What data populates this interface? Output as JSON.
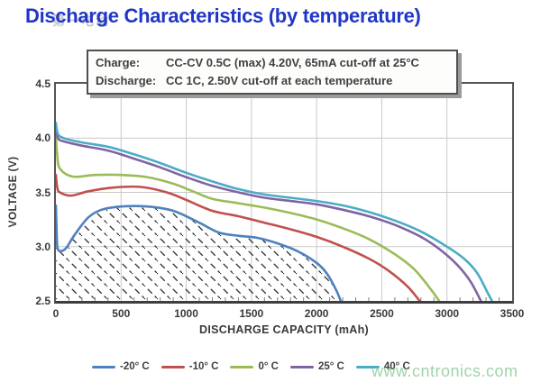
{
  "title": "Discharge Characteristics (by temperature)",
  "watermark_top": "第一电动",
  "watermark_bottom": "www.cntronics.com",
  "info_box": {
    "rows": [
      {
        "label": "Charge:",
        "text": "CC-CV 0.5C (max) 4.20V, 65mA cut-off at 25°C"
      },
      {
        "label": "Discharge:",
        "text": "CC 1C, 2.50V cut-off at each temperature"
      }
    ]
  },
  "colors": {
    "title": "#2036c8",
    "grid": "#c9c9c9",
    "axis_frame": "#555555",
    "minor_tick": "#7d7d7d",
    "hatch": "#2e2e2e",
    "watermark_green": "#8fcc9b"
  },
  "chart_data": {
    "type": "line",
    "xlabel": "DISCHARGE CAPACITY (mAh)",
    "ylabel": "VOLTAGE (V)",
    "xlim": [
      0,
      3500
    ],
    "ylim": [
      2.5,
      4.5
    ],
    "xticks": [
      0,
      500,
      1000,
      1500,
      2000,
      2500,
      3000,
      3500
    ],
    "yticks": [
      "4.5",
      "4.0",
      "3.5",
      "3.0",
      "2.5"
    ],
    "grid": true,
    "legend_position": "bottom",
    "series": [
      {
        "name": "-20° C",
        "color": "#4F81BD",
        "hatched_area": true,
        "points": [
          [
            0,
            3.38
          ],
          [
            5,
            3.18
          ],
          [
            12,
            2.99
          ],
          [
            40,
            2.96
          ],
          [
            80,
            2.99
          ],
          [
            150,
            3.12
          ],
          [
            250,
            3.27
          ],
          [
            350,
            3.34
          ],
          [
            500,
            3.37
          ],
          [
            700,
            3.37
          ],
          [
            900,
            3.33
          ],
          [
            1100,
            3.22
          ],
          [
            1250,
            3.13
          ],
          [
            1400,
            3.1
          ],
          [
            1550,
            3.08
          ],
          [
            1700,
            3.03
          ],
          [
            1850,
            2.96
          ],
          [
            2000,
            2.85
          ],
          [
            2080,
            2.75
          ],
          [
            2150,
            2.6
          ],
          [
            2185,
            2.5
          ]
        ]
      },
      {
        "name": "-10° C",
        "color": "#C0504D",
        "hatched_area": false,
        "points": [
          [
            0,
            3.66
          ],
          [
            10,
            3.55
          ],
          [
            30,
            3.5
          ],
          [
            120,
            3.47
          ],
          [
            250,
            3.51
          ],
          [
            450,
            3.545
          ],
          [
            650,
            3.55
          ],
          [
            850,
            3.5
          ],
          [
            1000,
            3.43
          ],
          [
            1200,
            3.33
          ],
          [
            1400,
            3.28
          ],
          [
            1600,
            3.22
          ],
          [
            1800,
            3.16
          ],
          [
            2000,
            3.09
          ],
          [
            2200,
            3.0
          ],
          [
            2400,
            2.89
          ],
          [
            2550,
            2.78
          ],
          [
            2700,
            2.63
          ],
          [
            2790,
            2.5
          ]
        ]
      },
      {
        "name": "0° C",
        "color": "#9BBB59",
        "hatched_area": false,
        "points": [
          [
            0,
            4.02
          ],
          [
            10,
            3.85
          ],
          [
            30,
            3.72
          ],
          [
            130,
            3.645
          ],
          [
            300,
            3.66
          ],
          [
            500,
            3.66
          ],
          [
            700,
            3.64
          ],
          [
            900,
            3.58
          ],
          [
            1050,
            3.51
          ],
          [
            1200,
            3.44
          ],
          [
            1400,
            3.4
          ],
          [
            1600,
            3.36
          ],
          [
            1800,
            3.31
          ],
          [
            2000,
            3.25
          ],
          [
            2200,
            3.17
          ],
          [
            2400,
            3.07
          ],
          [
            2600,
            2.93
          ],
          [
            2750,
            2.79
          ],
          [
            2880,
            2.6
          ],
          [
            2940,
            2.5
          ]
        ]
      },
      {
        "name": "25° C",
        "color": "#8064A2",
        "hatched_area": false,
        "points": [
          [
            0,
            4.1
          ],
          [
            15,
            4.0
          ],
          [
            60,
            3.97
          ],
          [
            200,
            3.93
          ],
          [
            400,
            3.885
          ],
          [
            600,
            3.81
          ],
          [
            800,
            3.73
          ],
          [
            1000,
            3.64
          ],
          [
            1200,
            3.56
          ],
          [
            1400,
            3.5
          ],
          [
            1600,
            3.45
          ],
          [
            1800,
            3.42
          ],
          [
            2000,
            3.39
          ],
          [
            2200,
            3.34
          ],
          [
            2400,
            3.28
          ],
          [
            2600,
            3.2
          ],
          [
            2800,
            3.09
          ],
          [
            2950,
            2.97
          ],
          [
            3080,
            2.83
          ],
          [
            3180,
            2.68
          ],
          [
            3260,
            2.5
          ]
        ]
      },
      {
        "name": "40° C",
        "color": "#4BACC6",
        "hatched_area": false,
        "points": [
          [
            0,
            4.14
          ],
          [
            15,
            4.04
          ],
          [
            60,
            4.0
          ],
          [
            200,
            3.96
          ],
          [
            400,
            3.92
          ],
          [
            600,
            3.85
          ],
          [
            800,
            3.77
          ],
          [
            1000,
            3.68
          ],
          [
            1200,
            3.6
          ],
          [
            1400,
            3.53
          ],
          [
            1600,
            3.48
          ],
          [
            1800,
            3.45
          ],
          [
            2000,
            3.42
          ],
          [
            2200,
            3.38
          ],
          [
            2400,
            3.32
          ],
          [
            2600,
            3.24
          ],
          [
            2800,
            3.14
          ],
          [
            3000,
            3.0
          ],
          [
            3130,
            2.89
          ],
          [
            3230,
            2.76
          ],
          [
            3310,
            2.58
          ],
          [
            3345,
            2.5
          ]
        ]
      }
    ]
  }
}
